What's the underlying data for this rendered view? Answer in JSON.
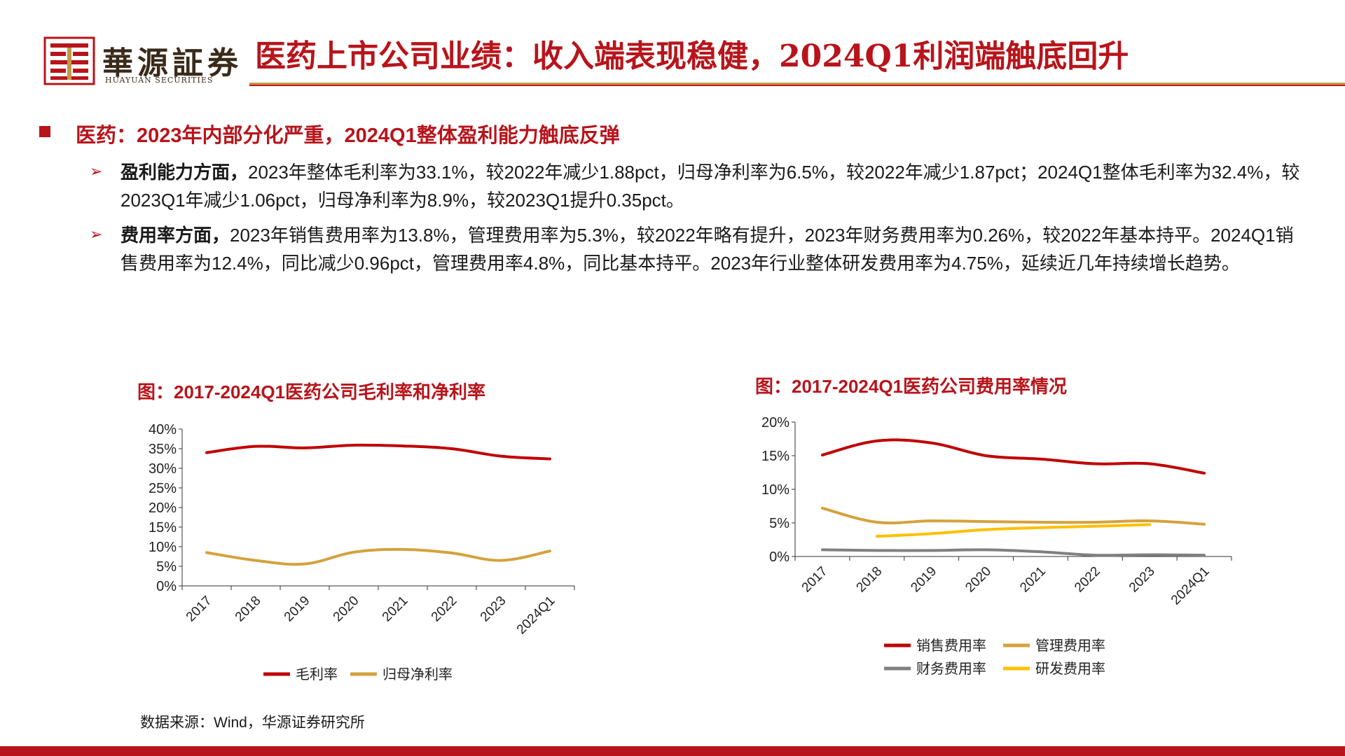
{
  "header": {
    "logo_cn": "華源証券",
    "logo_en": "HUAYUAN SECURITIES",
    "title": "医药上市公司业绩：收入端表现稳健，2024Q1利润端触底回升",
    "brand_red": "#b8141b",
    "brand_gold": "#c09a4a"
  },
  "section": {
    "heading": "医药：2023年内部分化严重，2024Q1整体盈利能力触底反弹",
    "points": [
      {
        "lead": "盈利能力方面，",
        "text": "2023年整体毛利率为33.1%，较2022年减少1.88pct，归母净利率为6.5%，较2022年减少1.87pct；2024Q1整体毛利率为32.4%，较2023Q1年减少1.06pct，归母净利率为8.9%，较2023Q1提升0.35pct。"
      },
      {
        "lead": "费用率方面，",
        "text": "2023年销售费用率为13.8%，管理费用率为5.3%，较2022年略有提升，2023年财务费用率为0.26%，较2022年基本持平。2024Q1销售费用率为12.4%，同比减少0.96pct，管理费用率4.8%，同比基本持平。2023年行业整体研发费用率为4.75%，延续近几年持续增长趋势。"
      }
    ]
  },
  "chart_data": [
    {
      "type": "line",
      "title": "图：2017-2024Q1医药公司毛利率和净利率",
      "categories": [
        "2017",
        "2018",
        "2019",
        "2020",
        "2021",
        "2022",
        "2023",
        "2024Q1"
      ],
      "yticks": [
        "0%",
        "5%",
        "10%",
        "15%",
        "20%",
        "25%",
        "30%",
        "35%",
        "40%"
      ],
      "ylim": [
        0,
        40
      ],
      "series": [
        {
          "name": "毛利率",
          "color": "#c00000",
          "values": [
            34.0,
            35.6,
            35.2,
            35.9,
            35.7,
            35.0,
            33.1,
            32.4
          ]
        },
        {
          "name": "归母净利率",
          "color": "#d4a23c",
          "values": [
            8.5,
            6.5,
            5.6,
            8.6,
            9.3,
            8.4,
            6.5,
            8.9
          ]
        }
      ],
      "legend": "bottom"
    },
    {
      "type": "line",
      "title": "图：2017-2024Q1医药公司费用率情况",
      "categories": [
        "2017",
        "2018",
        "2019",
        "2020",
        "2021",
        "2022",
        "2023",
        "2024Q1"
      ],
      "yticks": [
        "0%",
        "5%",
        "10%",
        "15%",
        "20%"
      ],
      "ylim": [
        0,
        20
      ],
      "series": [
        {
          "name": "销售费用率",
          "color": "#c00000",
          "values": [
            15.1,
            17.2,
            16.9,
            15.0,
            14.5,
            13.8,
            13.8,
            12.4
          ]
        },
        {
          "name": "管理费用率",
          "color": "#d4a23c",
          "values": [
            7.2,
            5.1,
            5.3,
            5.2,
            5.1,
            5.1,
            5.3,
            4.8
          ]
        },
        {
          "name": "财务费用率",
          "color": "#808080",
          "values": [
            1.0,
            0.9,
            0.9,
            1.0,
            0.7,
            0.2,
            0.26,
            0.2
          ]
        },
        {
          "name": "研发费用率",
          "color": "#ffc000",
          "values": [
            null,
            3.0,
            3.4,
            4.0,
            4.3,
            4.5,
            4.75,
            null
          ]
        }
      ],
      "legend": "bottom"
    }
  ],
  "footer": {
    "source": "数据来源：Wind，华源证券研究所"
  }
}
